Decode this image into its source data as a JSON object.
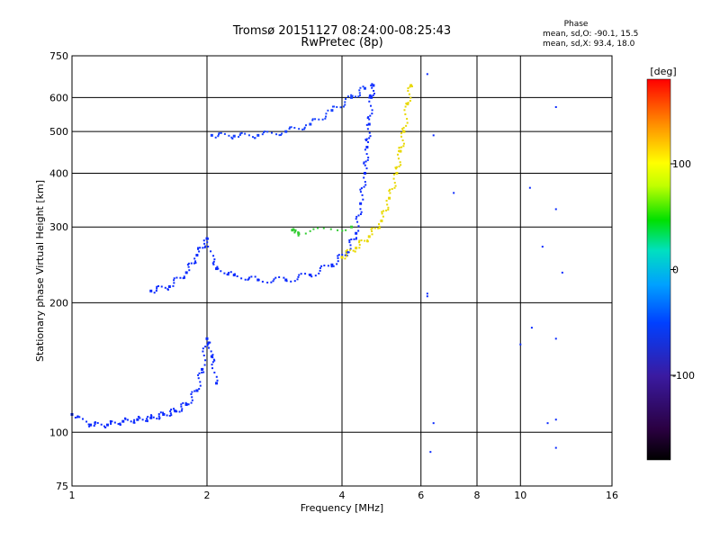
{
  "header": {
    "title_line1": "Tromsø 20151127 08:24:00-08:25:43",
    "title_line2": "RwPretec (8p)",
    "phase_heading": "Phase",
    "phase_o": "mean, sd,O: -90.1, 15.5",
    "phase_x": "mean, sd,X:  93.4, 18.0"
  },
  "chart_data": {
    "type": "scatter",
    "xlabel": "Frequency [MHz]",
    "ylabel": "Stationary phase Virtual Height [km]",
    "x_scale": "log",
    "y_scale": "log",
    "xlim": [
      1,
      16
    ],
    "ylim": [
      75,
      750
    ],
    "x_ticks": [
      1,
      2,
      4,
      6,
      8,
      10,
      16
    ],
    "y_ticks": [
      75,
      100,
      200,
      300,
      400,
      500,
      600,
      750
    ],
    "x_gridlines": [
      2,
      4,
      6,
      8,
      10
    ],
    "y_gridlines": [
      100,
      200,
      300,
      400,
      500,
      600
    ],
    "colorbar": {
      "label": "[deg]",
      "range": [
        -180,
        180
      ],
      "ticks": [
        100,
        0,
        -100
      ]
    },
    "series": [
      {
        "values": [
          [
            1.0,
            110
          ],
          [
            1.1,
            104
          ],
          [
            1.2,
            104
          ],
          [
            1.3,
            106
          ],
          [
            1.4,
            107
          ],
          [
            1.5,
            108
          ],
          [
            1.6,
            110
          ],
          [
            1.7,
            112
          ],
          [
            1.8,
            116
          ],
          [
            1.9,
            125
          ],
          [
            1.95,
            140
          ],
          [
            2.0,
            165
          ],
          [
            2.05,
            150
          ],
          [
            2.1,
            130
          ]
        ]
      },
      {
        "values": [
          [
            1.5,
            213
          ],
          [
            1.65,
            218
          ],
          [
            1.8,
            235
          ],
          [
            1.9,
            258
          ],
          [
            2.0,
            282
          ],
          [
            2.1,
            240
          ],
          [
            2.3,
            232
          ],
          [
            2.6,
            226
          ],
          [
            3.0,
            226
          ],
          [
            3.4,
            232
          ],
          [
            3.8,
            245
          ],
          [
            4.1,
            262
          ],
          [
            4.3,
            290
          ],
          [
            4.4,
            340
          ],
          [
            4.5,
            400
          ],
          [
            4.55,
            460
          ],
          [
            4.6,
            520
          ],
          [
            4.65,
            600
          ],
          [
            4.7,
            640
          ]
        ]
      },
      {
        "values": [
          [
            2.05,
            490
          ],
          [
            2.3,
            488
          ],
          [
            2.6,
            490
          ],
          [
            3.0,
            500
          ],
          [
            3.4,
            520
          ],
          [
            3.8,
            560
          ],
          [
            4.2,
            600
          ],
          [
            4.5,
            630
          ]
        ]
      },
      {
        "values": [
          [
            4.0,
            255
          ],
          [
            4.3,
            268
          ],
          [
            4.6,
            285
          ],
          [
            4.9,
            310
          ],
          [
            5.1,
            350
          ],
          [
            5.3,
            400
          ],
          [
            5.4,
            450
          ],
          [
            5.5,
            500
          ],
          [
            5.6,
            580
          ],
          [
            5.7,
            640
          ]
        ]
      },
      {
        "values": [
          [
            3.1,
            295
          ],
          [
            3.2,
            290
          ],
          [
            4.2,
            300
          ]
        ]
      },
      {
        "values": [
          [
            6.2,
            680
          ],
          [
            6.4,
            490
          ],
          [
            7.1,
            360
          ],
          [
            10.5,
            370
          ],
          [
            11.2,
            270
          ],
          [
            12.0,
            570
          ],
          [
            12.0,
            330
          ],
          [
            10.6,
            175
          ],
          [
            12.0,
            165
          ],
          [
            10.0,
            160
          ],
          [
            6.2,
            210
          ],
          [
            6.2,
            207
          ],
          [
            6.3,
            90
          ],
          [
            6.4,
            105
          ],
          [
            11.5,
            105
          ],
          [
            12.0,
            107
          ],
          [
            12.0,
            92
          ],
          [
            12.4,
            235
          ]
        ]
      }
    ]
  }
}
